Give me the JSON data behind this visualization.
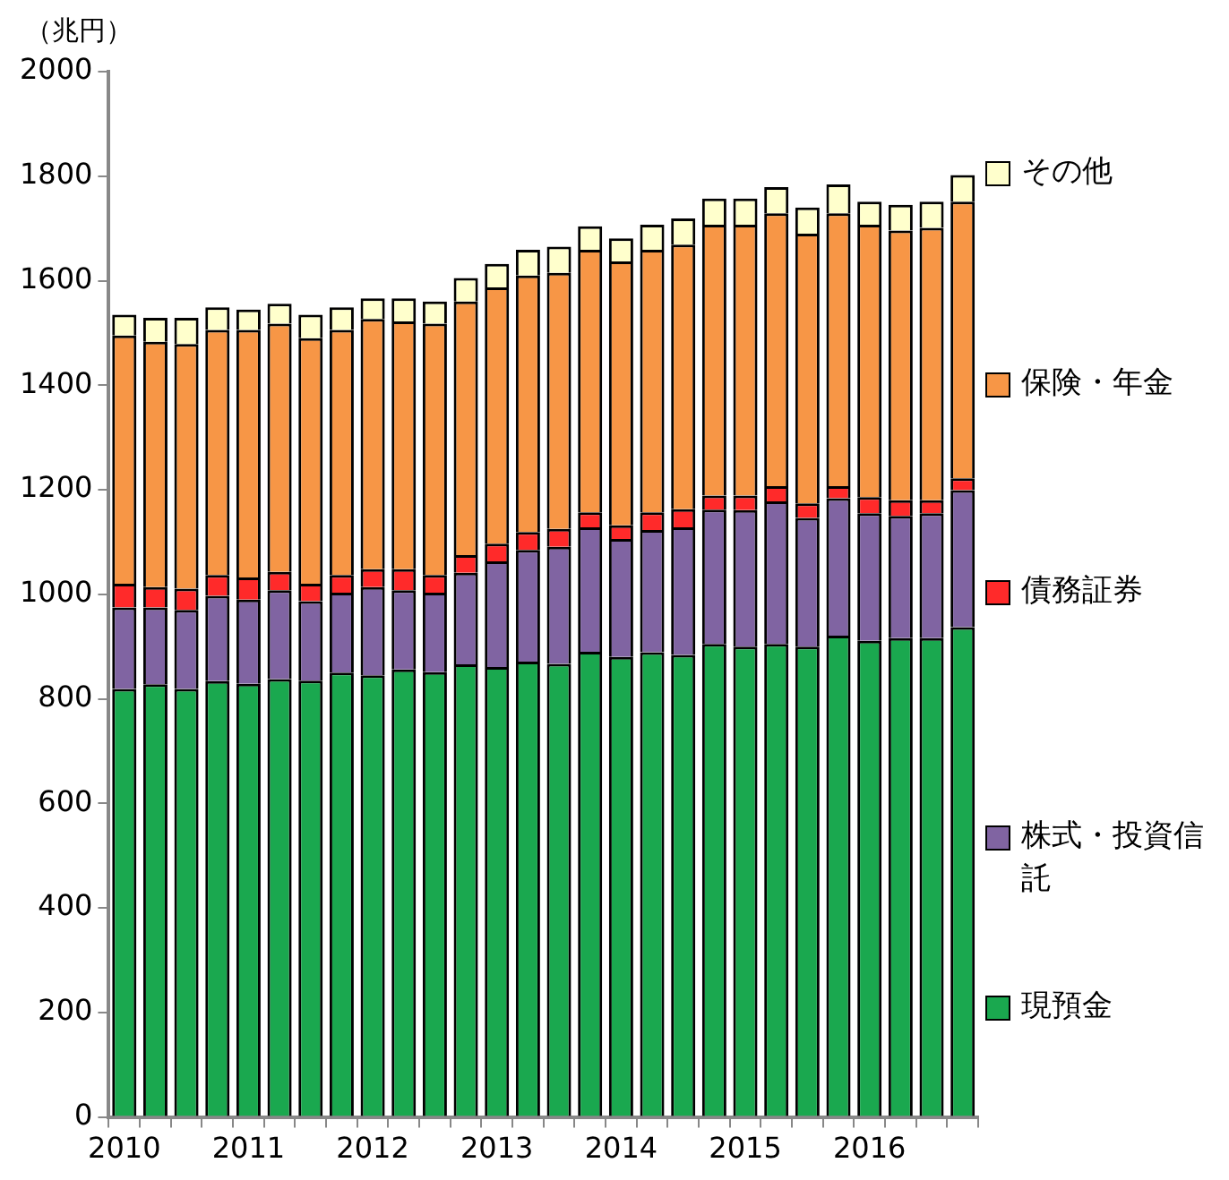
{
  "chart_data": {
    "type": "bar",
    "stacked": true,
    "ylabel": "（兆円）",
    "categories": [
      "2010",
      null,
      null,
      null,
      "2011",
      null,
      null,
      null,
      "2012",
      null,
      null,
      null,
      "2013",
      null,
      null,
      null,
      "2014",
      null,
      null,
      null,
      "2015",
      null,
      null,
      null,
      "2016",
      null,
      null,
      null
    ],
    "series": [
      {
        "name": "現預金",
        "color": "#1aa84f",
        "values": [
          819,
          828,
          819,
          834,
          829,
          838,
          835,
          850,
          845,
          856,
          851,
          866,
          861,
          871,
          867,
          890,
          880,
          889,
          884,
          905,
          900,
          905,
          900,
          921,
          911,
          916,
          916,
          937
        ]
      },
      {
        "name": "株式・投資信託",
        "color": "#8064a2",
        "values": [
          156,
          147,
          151,
          163,
          161,
          170,
          152,
          153,
          169,
          152,
          152,
          175,
          202,
          214,
          224,
          238,
          226,
          234,
          244,
          257,
          261,
          273,
          246,
          263,
          244,
          234,
          239,
          262
        ]
      },
      {
        "name": "債務証券",
        "color": "#ff2a2a",
        "values": [
          45,
          39,
          41,
          40,
          42,
          35,
          33,
          34,
          34,
          40,
          34,
          34,
          34,
          34,
          34,
          29,
          26,
          34,
          35,
          27,
          28,
          29,
          28,
          23,
          31,
          30,
          25,
          23
        ]
      },
      {
        "name": "保険・年金",
        "color": "#f79646",
        "values": [
          475,
          469,
          468,
          469,
          474,
          475,
          470,
          469,
          479,
          474,
          481,
          485,
          490,
          491,
          490,
          502,
          505,
          502,
          506,
          518,
          518,
          522,
          516,
          522,
          521,
          516,
          521,
          529
        ]
      },
      {
        "name": "その他",
        "color": "#ffffcc",
        "values": [
          40,
          46,
          50,
          43,
          39,
          38,
          45,
          43,
          39,
          44,
          42,
          45,
          45,
          49,
          50,
          45,
          44,
          48,
          50,
          50,
          50,
          50,
          50,
          55,
          44,
          49,
          50,
          51
        ]
      }
    ],
    "ylim": [
      0,
      2000
    ],
    "yticks": [
      0,
      200,
      400,
      600,
      800,
      1000,
      1200,
      1400,
      1600,
      1800,
      2000
    ],
    "grid": false,
    "legend": "right"
  }
}
